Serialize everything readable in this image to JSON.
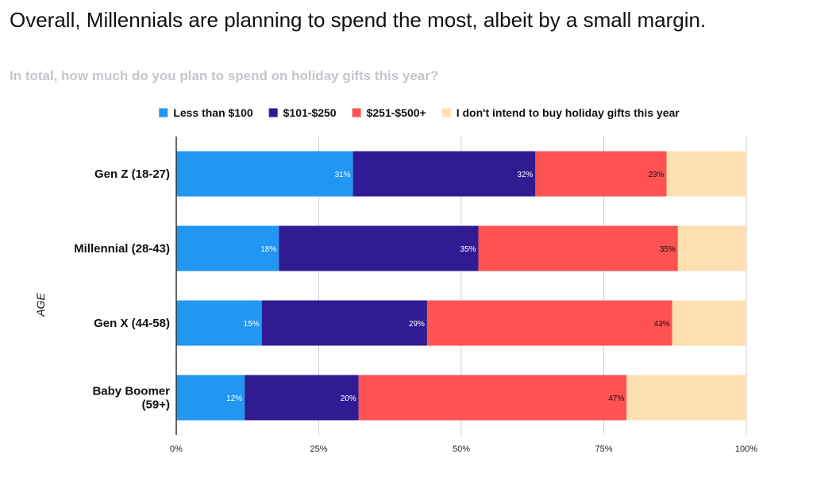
{
  "headline": "Overall, Millennials are planning to spend the most, albeit by a small margin.",
  "chart_data": {
    "type": "bar",
    "orientation": "horizontal",
    "stacked": true,
    "title": "In total, how much do you plan to spend on holiday gifts this year?",
    "ylabel": "AGE",
    "xlabel": "",
    "xlim": [
      0,
      100
    ],
    "x_ticks": [
      "0%",
      "25%",
      "50%",
      "75%",
      "100%"
    ],
    "grid": true,
    "legend_position": "top",
    "categories": [
      [
        "Gen Z (18-27)"
      ],
      [
        "Millennial (28-43)"
      ],
      [
        "Gen X (44-58)"
      ],
      [
        "Baby Boomer",
        "(59+)"
      ]
    ],
    "series": [
      {
        "name": "Less than $100",
        "color": "#2196f3",
        "label_color": "#ffffff",
        "values": [
          31,
          18,
          15,
          12
        ],
        "labels": [
          "31%",
          "18%",
          "15%",
          "12%"
        ]
      },
      {
        "name": "$101-$250",
        "color": "#311b92",
        "label_color": "#ffffff",
        "values": [
          32,
          35,
          29,
          20
        ],
        "labels": [
          "32%",
          "35%",
          "29%",
          "20%"
        ]
      },
      {
        "name": "$251-$500+",
        "color": "#ff5252",
        "label_color": "#111111",
        "values": [
          23,
          35,
          43,
          47
        ],
        "labels": [
          "23%",
          "35%",
          "43%",
          "47%"
        ]
      },
      {
        "name": "I don't intend to buy holiday gifts this year",
        "color": "#ffe0b2",
        "label_color": "#111111",
        "values": [
          14,
          12,
          13,
          21
        ],
        "labels": [
          "",
          "",
          "",
          ""
        ]
      }
    ]
  }
}
